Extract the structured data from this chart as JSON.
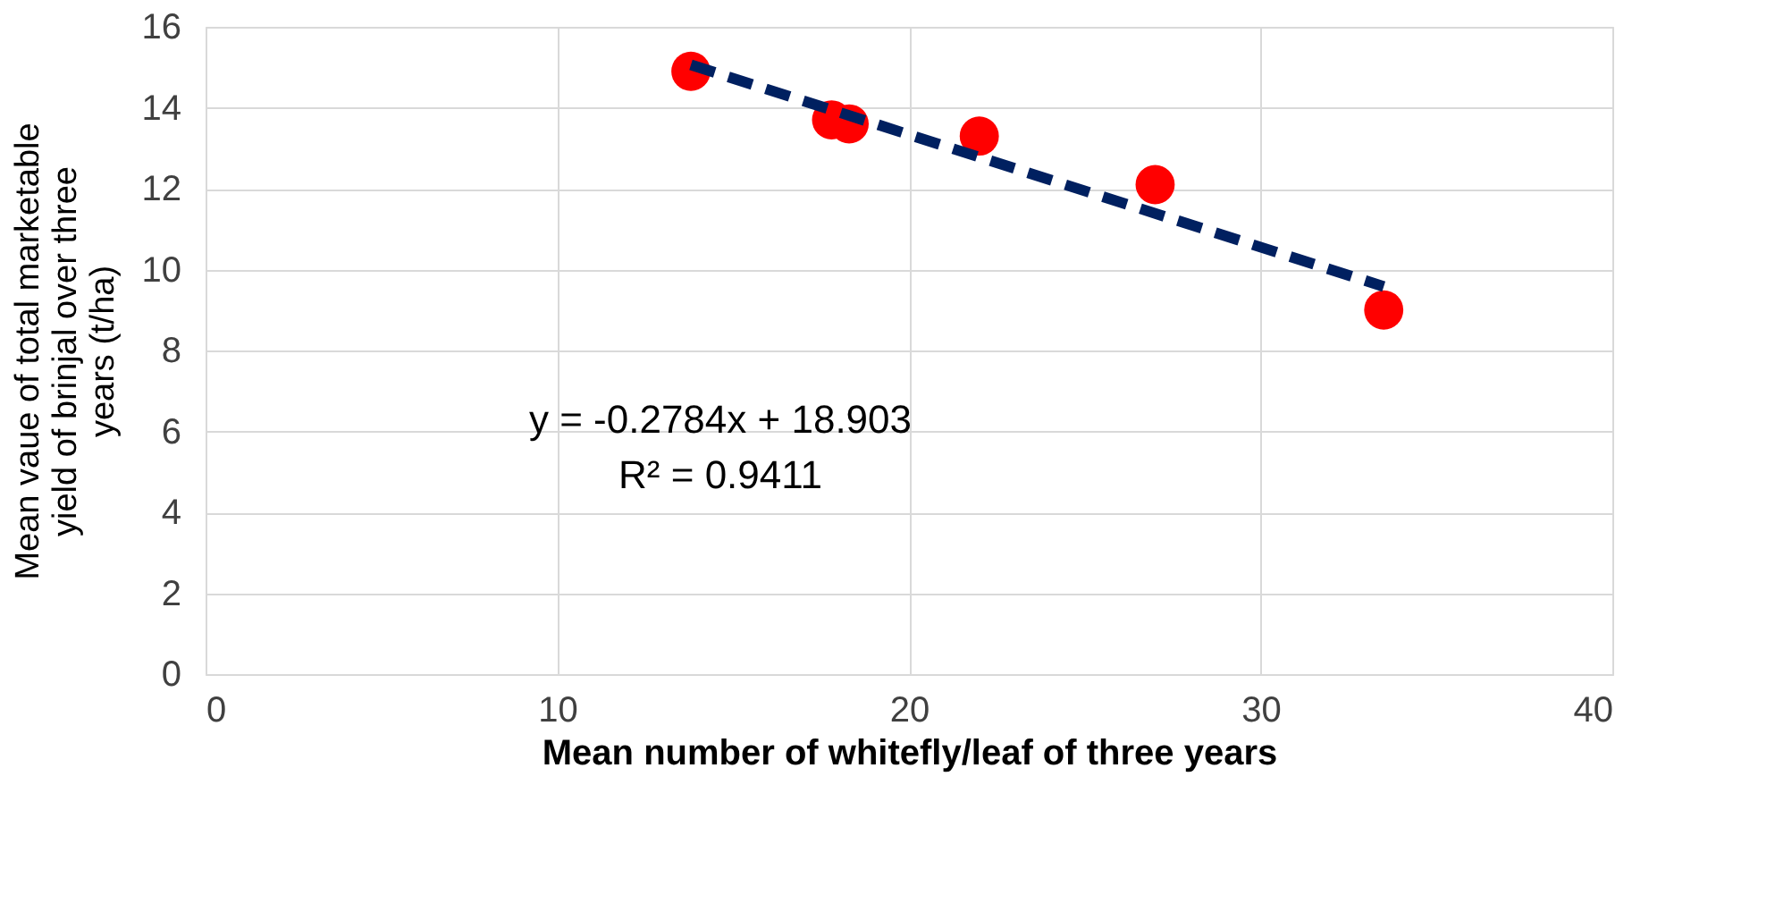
{
  "chart_data": {
    "type": "scatter",
    "xlabel": "Mean number of whitefly/leaf of three years",
    "ylabel": "Mean vaue of total marketable yield of brinjal over three years (t/ha)",
    "series": [
      {
        "color": "#ff0000",
        "marker": "circle",
        "x": [
          13.8,
          17.8,
          18.3,
          22.0,
          27.0,
          33.5
        ],
        "values": [
          14.9,
          13.7,
          13.6,
          13.3,
          12.1,
          9.0
        ]
      },
      {
        "type": "line",
        "color": "#002060",
        "line_style": "dashed",
        "marker": "none",
        "x": [
          13.8,
          33.5
        ],
        "values": [
          15.06,
          9.58
        ]
      }
    ],
    "annotations": [
      "y = -0.2784x + 18.903",
      "R² = 0.9411"
    ],
    "xlim": [
      0,
      40
    ],
    "xticks": [
      0,
      10,
      20,
      30,
      40
    ],
    "ylim": [
      0,
      16
    ],
    "yticks": [
      0,
      2,
      4,
      6,
      8,
      10,
      12,
      14,
      16
    ],
    "grid": true
  }
}
